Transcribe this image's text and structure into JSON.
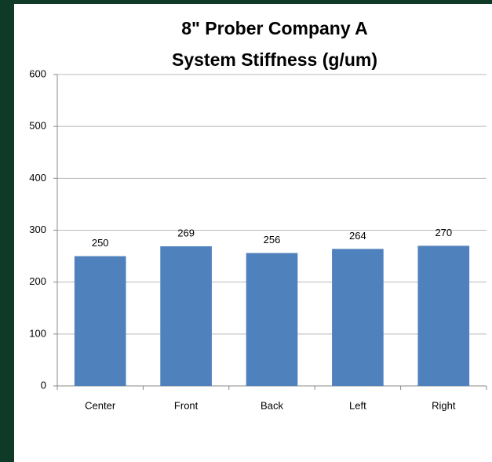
{
  "chart_data": {
    "type": "bar",
    "title": [
      "8\" Prober Company A",
      "System Stiffness (g/um)"
    ],
    "categories": [
      "Center",
      "Front",
      "Back",
      "Left",
      "Right"
    ],
    "values": [
      250,
      269,
      256,
      264,
      270
    ],
    "color": "#4f81bd",
    "ylim": [
      0,
      600
    ],
    "yticks": [
      0,
      100,
      200,
      300,
      400,
      500,
      600
    ],
    "grid": true
  }
}
